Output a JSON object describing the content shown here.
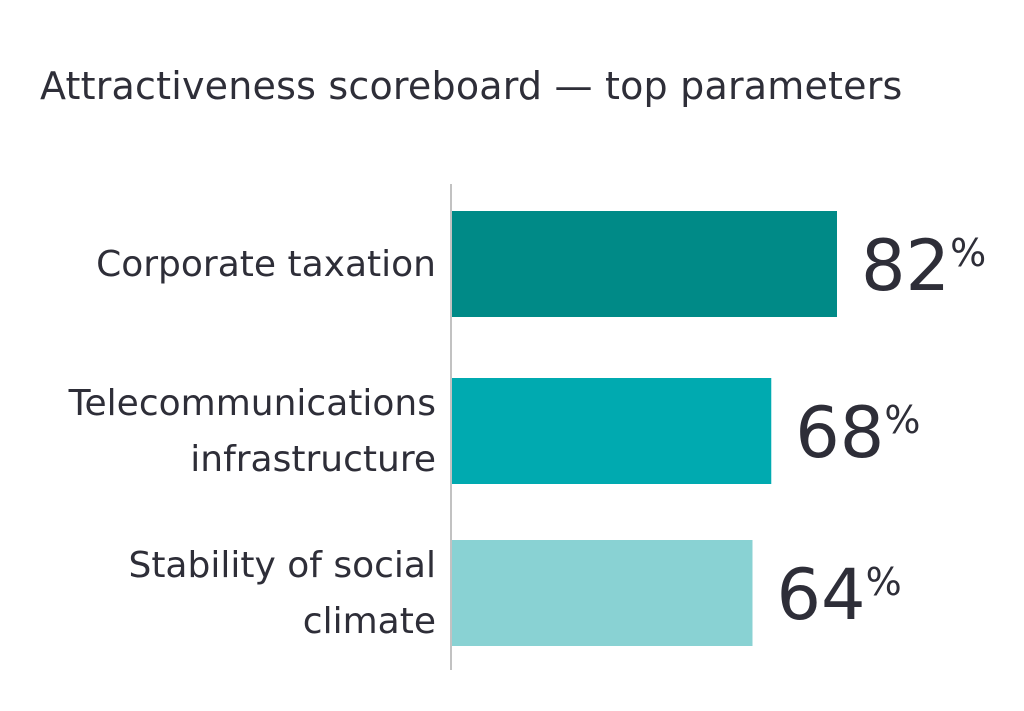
{
  "chart_data": {
    "type": "bar",
    "orientation": "horizontal",
    "title": "Attractiveness scoreboard — top parameters",
    "categories": [
      [
        "Corporate taxation"
      ],
      [
        "Telecommunications",
        "infrastructure"
      ],
      [
        "Stability of social",
        "climate"
      ]
    ],
    "values": [
      82,
      68,
      64
    ],
    "value_unit": "%",
    "bar_colors": [
      "#008a87",
      "#00aab0",
      "#89d2d3"
    ],
    "axis_line_color": "#c2c2c2",
    "xlim": [
      0,
      100
    ],
    "grid": false,
    "legend": "none"
  }
}
